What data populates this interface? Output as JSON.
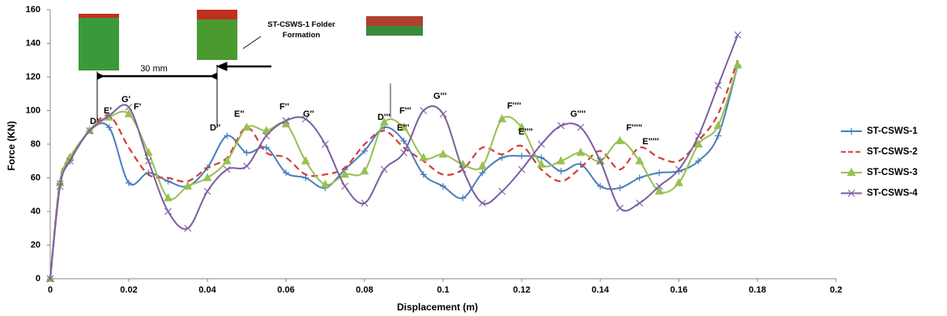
{
  "dimension_label": "30 mm",
  "folder_label": "ST-CSWS-1 Folder Formation",
  "chart_data": {
    "type": "line",
    "x_label": "Displacement (m)",
    "y_label": "Force (KN)",
    "x": [
      0,
      0.0025,
      0.005,
      0.01,
      0.015,
      0.02,
      0.025,
      0.03,
      0.035,
      0.04,
      0.045,
      0.05,
      0.055,
      0.06,
      0.065,
      0.07,
      0.075,
      0.08,
      0.085,
      0.09,
      0.095,
      0.1,
      0.105,
      0.11,
      0.115,
      0.12,
      0.125,
      0.13,
      0.135,
      0.14,
      0.145,
      0.15,
      0.155,
      0.16,
      0.165,
      0.17,
      0.175
    ],
    "series": [
      {
        "name": "ST-CSWS-1",
        "color": "#4a7ebb",
        "marker": "plus",
        "dash": false,
        "values": [
          0,
          58,
          70,
          88,
          90,
          57,
          63,
          58,
          55,
          66,
          85,
          75,
          78,
          63,
          60,
          54,
          65,
          76,
          90,
          82,
          62,
          55,
          48,
          63,
          72,
          73,
          72,
          64,
          68,
          55,
          54,
          60,
          63,
          64,
          70,
          85,
          127
        ]
      },
      {
        "name": "ST-CSWS-2",
        "color": "#d0403a",
        "marker": "none",
        "dash": true,
        "values": [
          0,
          58,
          72,
          88,
          97,
          78,
          62,
          60,
          58,
          66,
          72,
          90,
          75,
          72,
          62,
          62,
          66,
          80,
          88,
          78,
          70,
          62,
          65,
          78,
          74,
          79,
          65,
          58,
          66,
          76,
          65,
          78,
          72,
          70,
          82,
          98,
          130
        ]
      },
      {
        "name": "ST-CSWS-3",
        "color": "#98c050",
        "marker": "triangle",
        "dash": false,
        "values": [
          0,
          57,
          72,
          88,
          96,
          98,
          75,
          48,
          55,
          60,
          70,
          90,
          88,
          92,
          70,
          56,
          62,
          64,
          93,
          90,
          72,
          74,
          68,
          67,
          95,
          90,
          68,
          70,
          75,
          70,
          82,
          70,
          52,
          57,
          80,
          91,
          127
        ]
      },
      {
        "name": "ST-CSWS-4",
        "color": "#7d5fa0",
        "marker": "cross",
        "dash": false,
        "values": [
          0,
          55,
          70,
          88,
          97,
          102,
          70,
          40,
          30,
          52,
          65,
          67,
          85,
          94,
          95,
          80,
          55,
          45,
          65,
          75,
          100,
          98,
          65,
          45,
          52,
          65,
          80,
          91,
          90,
          70,
          42,
          45,
          55,
          65,
          85,
          115,
          145
        ]
      }
    ],
    "xlim": [
      0,
      0.2
    ],
    "ylim": [
      0,
      160
    ],
    "xticks": [
      0,
      0.02,
      0.04,
      0.06,
      0.08,
      0.1,
      0.12,
      0.14,
      0.16,
      0.18,
      0.2
    ],
    "yticks": [
      0,
      20,
      40,
      60,
      80,
      100,
      120,
      140,
      160
    ],
    "grid": false,
    "legend": "right",
    "annotations": [
      "D'",
      "E'",
      "G'",
      "F'",
      "D''",
      "E''",
      "F''",
      "G''",
      "D'''",
      "F'''",
      "E'''",
      "G'''",
      "F''''",
      "E''''",
      "G''''",
      "F'''''",
      "E'''''"
    ]
  }
}
